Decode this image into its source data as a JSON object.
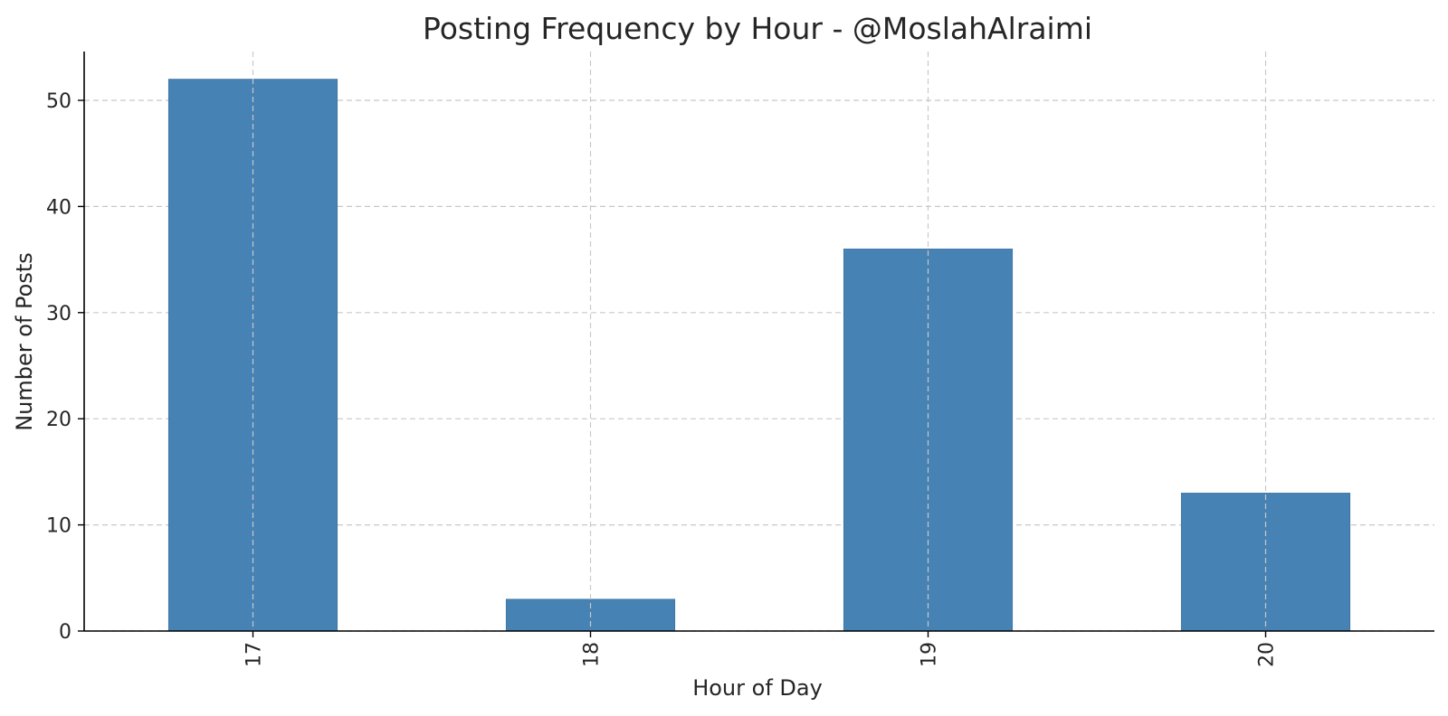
{
  "chart_data": {
    "type": "bar",
    "title": "Posting Frequency by Hour - @MoslahAlraimi",
    "xlabel": "Hour of Day",
    "ylabel": "Number of Posts",
    "categories": [
      "17",
      "18",
      "19",
      "20"
    ],
    "values": [
      52,
      3,
      36,
      13
    ],
    "ylim": [
      0,
      54.6
    ],
    "yticks": [
      0,
      10,
      20,
      30,
      40,
      50
    ],
    "grid": true,
    "x_tick_rotation": "vertical",
    "bar_color": "#4682b4",
    "grid_color": "#c8c8c8",
    "axis_color": "#000000",
    "text_color": "#262626"
  }
}
